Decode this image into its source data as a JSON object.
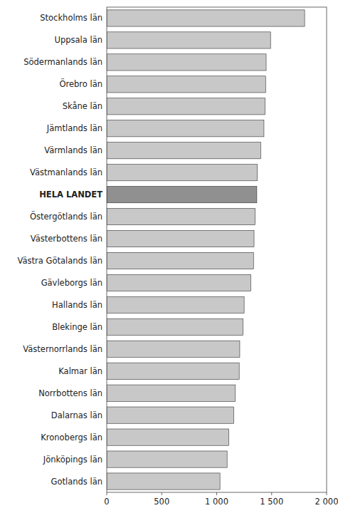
{
  "chart_data": {
    "type": "bar",
    "orientation": "horizontal",
    "categories": [
      "Stockholms län",
      "Uppsala län",
      "Södermanlands län",
      "Örebro län",
      "Skåne län",
      "Jämtlands län",
      "Värmlands län",
      "Västmanlands län",
      "HELA LANDET",
      "Östergötlands län",
      "Västerbottens län",
      "Västra Götalands län",
      "Gävleborgs län",
      "Hallands län",
      "Blekinge län",
      "Västernorrlands län",
      "Kalmar län",
      "Norrbottens län",
      "Dalarnas län",
      "Kronobergs län",
      "Jönköpings län",
      "Gotlands län"
    ],
    "values": [
      1800,
      1490,
      1450,
      1445,
      1440,
      1430,
      1400,
      1370,
      1365,
      1350,
      1340,
      1335,
      1310,
      1250,
      1240,
      1210,
      1205,
      1170,
      1155,
      1110,
      1095,
      1030
    ],
    "colors": [
      "#c8c8c8",
      "#c8c8c8",
      "#c8c8c8",
      "#c8c8c8",
      "#c8c8c8",
      "#c8c8c8",
      "#c8c8c8",
      "#c8c8c8",
      "#909090",
      "#c8c8c8",
      "#c8c8c8",
      "#c8c8c8",
      "#c8c8c8",
      "#c8c8c8",
      "#c8c8c8",
      "#c8c8c8",
      "#c8c8c8",
      "#c8c8c8",
      "#c8c8c8",
      "#c8c8c8",
      "#c8c8c8",
      "#c8c8c8"
    ],
    "xlim": [
      0,
      2000
    ],
    "xticks": [
      0,
      500,
      {
        "value": 1000,
        "label": "1 000"
      },
      {
        "value": 1500,
        "label": "1 500"
      },
      {
        "value": 2000,
        "label": "2 000"
      }
    ],
    "grid": false
  }
}
